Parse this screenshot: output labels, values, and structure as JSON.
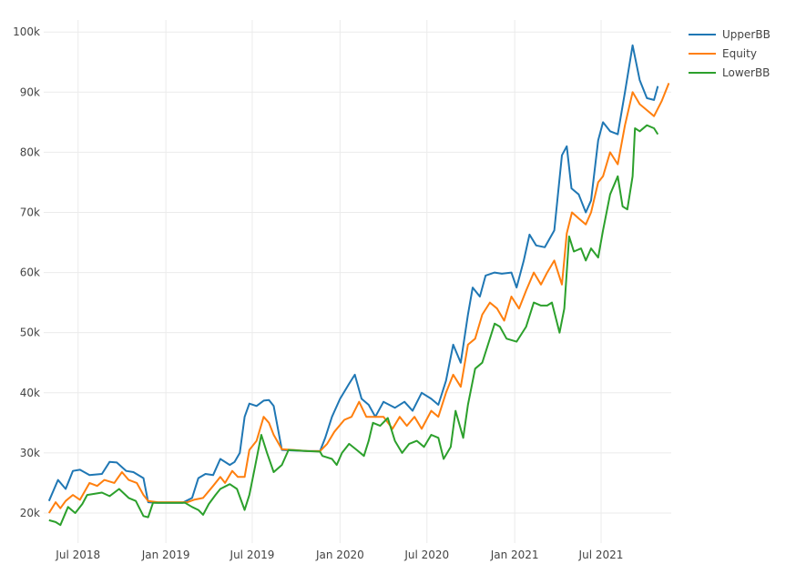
{
  "chart_data": {
    "type": "line",
    "title": "",
    "xlabel": "",
    "ylabel": "",
    "x_axis": {
      "kind": "date",
      "range": [
        "2018-04-20",
        "2021-11-25"
      ],
      "ticks": [
        {
          "date": "2018-07-01",
          "label": "Jul 2018"
        },
        {
          "date": "2019-01-01",
          "label": "Jan 2019"
        },
        {
          "date": "2019-07-01",
          "label": "Jul 2019"
        },
        {
          "date": "2020-01-01",
          "label": "Jan 2020"
        },
        {
          "date": "2020-07-01",
          "label": "Jul 2020"
        },
        {
          "date": "2021-01-01",
          "label": "Jan 2021"
        },
        {
          "date": "2021-07-01",
          "label": "Jul 2021"
        }
      ]
    },
    "y_axis": {
      "range": [
        15000,
        102000
      ],
      "ticks": [
        {
          "value": 20000,
          "label": "20k"
        },
        {
          "value": 30000,
          "label": "30k"
        },
        {
          "value": 40000,
          "label": "40k"
        },
        {
          "value": 50000,
          "label": "50k"
        },
        {
          "value": 60000,
          "label": "60k"
        },
        {
          "value": 70000,
          "label": "70k"
        },
        {
          "value": 80000,
          "label": "80k"
        },
        {
          "value": 90000,
          "label": "90k"
        },
        {
          "value": 100000,
          "label": "100k"
        }
      ]
    },
    "grid": true,
    "legend_position": "top-right",
    "series": [
      {
        "name": "UpperBB",
        "color": "#1f77b4",
        "points": [
          [
            "2018-05-01",
            22000
          ],
          [
            "2018-05-20",
            25500
          ],
          [
            "2018-06-05",
            24000
          ],
          [
            "2018-06-20",
            27000
          ],
          [
            "2018-07-05",
            27200
          ],
          [
            "2018-07-25",
            26300
          ],
          [
            "2018-08-20",
            26500
          ],
          [
            "2018-09-05",
            28500
          ],
          [
            "2018-09-20",
            28400
          ],
          [
            "2018-10-10",
            27000
          ],
          [
            "2018-10-25",
            26800
          ],
          [
            "2018-11-15",
            25800
          ],
          [
            "2018-11-25",
            21800
          ],
          [
            "2018-12-15",
            21700
          ],
          [
            "2019-01-20",
            21700
          ],
          [
            "2019-02-05",
            21700
          ],
          [
            "2019-02-25",
            22500
          ],
          [
            "2019-03-10",
            25800
          ],
          [
            "2019-03-25",
            26500
          ],
          [
            "2019-04-10",
            26300
          ],
          [
            "2019-04-25",
            29000
          ],
          [
            "2019-05-15",
            28000
          ],
          [
            "2019-05-25",
            28500
          ],
          [
            "2019-06-05",
            30000
          ],
          [
            "2019-06-15",
            36000
          ],
          [
            "2019-06-25",
            38200
          ],
          [
            "2019-07-10",
            37800
          ],
          [
            "2019-07-25",
            38700
          ],
          [
            "2019-08-05",
            38800
          ],
          [
            "2019-08-15",
            37800
          ],
          [
            "2019-09-01",
            30500
          ],
          [
            "2019-09-25",
            30400
          ],
          [
            "2019-10-25",
            30300
          ],
          [
            "2019-11-20",
            30300
          ],
          [
            "2019-12-01",
            32500
          ],
          [
            "2019-12-15",
            36000
          ],
          [
            "2020-01-01",
            39000
          ],
          [
            "2020-01-20",
            41500
          ],
          [
            "2020-02-01",
            43000
          ],
          [
            "2020-02-15",
            39000
          ],
          [
            "2020-03-01",
            38000
          ],
          [
            "2020-03-15",
            36000
          ],
          [
            "2020-04-01",
            38500
          ],
          [
            "2020-04-25",
            37500
          ],
          [
            "2020-05-15",
            38500
          ],
          [
            "2020-06-01",
            37000
          ],
          [
            "2020-06-20",
            40000
          ],
          [
            "2020-07-10",
            39000
          ],
          [
            "2020-07-25",
            38000
          ],
          [
            "2020-08-10",
            42000
          ],
          [
            "2020-08-25",
            48000
          ],
          [
            "2020-09-10",
            45000
          ],
          [
            "2020-09-25",
            53000
          ],
          [
            "2020-10-05",
            57500
          ],
          [
            "2020-10-20",
            56000
          ],
          [
            "2020-11-01",
            59500
          ],
          [
            "2020-11-20",
            60000
          ],
          [
            "2020-12-05",
            59800
          ],
          [
            "2020-12-25",
            60000
          ],
          [
            "2021-01-05",
            57500
          ],
          [
            "2021-01-20",
            62000
          ],
          [
            "2021-02-01",
            66300
          ],
          [
            "2021-02-15",
            64500
          ],
          [
            "2021-03-05",
            64200
          ],
          [
            "2021-03-25",
            67000
          ],
          [
            "2021-04-10",
            79500
          ],
          [
            "2021-04-20",
            81000
          ],
          [
            "2021-04-30",
            74000
          ],
          [
            "2021-05-15",
            73000
          ],
          [
            "2021-05-30",
            70000
          ],
          [
            "2021-06-10",
            72000
          ],
          [
            "2021-06-25",
            82000
          ],
          [
            "2021-07-05",
            85000
          ],
          [
            "2021-07-20",
            83500
          ],
          [
            "2021-08-05",
            83000
          ],
          [
            "2021-08-20",
            90000
          ],
          [
            "2021-09-05",
            97800
          ],
          [
            "2021-09-20",
            92000
          ],
          [
            "2021-10-05",
            89000
          ],
          [
            "2021-10-20",
            88700
          ],
          [
            "2021-10-28",
            91000
          ]
        ]
      },
      {
        "name": "Equity",
        "color": "#ff7f0e",
        "points": [
          [
            "2018-05-01",
            20000
          ],
          [
            "2018-05-15",
            21800
          ],
          [
            "2018-05-25",
            20800
          ],
          [
            "2018-06-05",
            22000
          ],
          [
            "2018-06-20",
            23000
          ],
          [
            "2018-07-05",
            22200
          ],
          [
            "2018-07-25",
            25000
          ],
          [
            "2018-08-10",
            24500
          ],
          [
            "2018-08-25",
            25500
          ],
          [
            "2018-09-15",
            25000
          ],
          [
            "2018-10-01",
            26800
          ],
          [
            "2018-10-15",
            25500
          ],
          [
            "2018-11-01",
            25000
          ],
          [
            "2018-11-15",
            23000
          ],
          [
            "2018-11-25",
            22000
          ],
          [
            "2018-12-15",
            21800
          ],
          [
            "2019-01-20",
            21800
          ],
          [
            "2019-02-15",
            21800
          ],
          [
            "2019-03-01",
            22200
          ],
          [
            "2019-03-20",
            22500
          ],
          [
            "2019-04-10",
            24500
          ],
          [
            "2019-04-25",
            26000
          ],
          [
            "2019-05-05",
            25000
          ],
          [
            "2019-05-20",
            27000
          ],
          [
            "2019-06-01",
            26000
          ],
          [
            "2019-06-15",
            26000
          ],
          [
            "2019-06-25",
            30500
          ],
          [
            "2019-07-10",
            32000
          ],
          [
            "2019-07-25",
            36000
          ],
          [
            "2019-08-05",
            35000
          ],
          [
            "2019-08-15",
            33000
          ],
          [
            "2019-09-01",
            30600
          ],
          [
            "2019-09-25",
            30500
          ],
          [
            "2019-10-25",
            30300
          ],
          [
            "2019-11-20",
            30300
          ],
          [
            "2019-12-05",
            31500
          ],
          [
            "2019-12-20",
            33500
          ],
          [
            "2020-01-10",
            35500
          ],
          [
            "2020-01-25",
            36000
          ],
          [
            "2020-02-10",
            38500
          ],
          [
            "2020-02-25",
            36000
          ],
          [
            "2020-03-10",
            36000
          ],
          [
            "2020-04-01",
            36000
          ],
          [
            "2020-04-20",
            34000
          ],
          [
            "2020-05-05",
            36000
          ],
          [
            "2020-05-20",
            34500
          ],
          [
            "2020-06-05",
            36000
          ],
          [
            "2020-06-20",
            34000
          ],
          [
            "2020-07-10",
            37000
          ],
          [
            "2020-07-25",
            36000
          ],
          [
            "2020-08-10",
            40000
          ],
          [
            "2020-08-25",
            43000
          ],
          [
            "2020-09-10",
            41000
          ],
          [
            "2020-09-25",
            48000
          ],
          [
            "2020-10-10",
            49000
          ],
          [
            "2020-10-25",
            53000
          ],
          [
            "2020-11-10",
            55000
          ],
          [
            "2020-11-25",
            54000
          ],
          [
            "2020-12-10",
            52000
          ],
          [
            "2020-12-25",
            56000
          ],
          [
            "2021-01-10",
            54000
          ],
          [
            "2021-01-25",
            57000
          ],
          [
            "2021-02-10",
            60000
          ],
          [
            "2021-02-25",
            58000
          ],
          [
            "2021-03-10",
            60000
          ],
          [
            "2021-03-25",
            62000
          ],
          [
            "2021-04-10",
            58000
          ],
          [
            "2021-04-20",
            66500
          ],
          [
            "2021-05-01",
            70000
          ],
          [
            "2021-05-15",
            69000
          ],
          [
            "2021-05-30",
            68000
          ],
          [
            "2021-06-10",
            70000
          ],
          [
            "2021-06-25",
            75000
          ],
          [
            "2021-07-05",
            76000
          ],
          [
            "2021-07-20",
            80000
          ],
          [
            "2021-08-05",
            78000
          ],
          [
            "2021-08-20",
            84500
          ],
          [
            "2021-09-05",
            90000
          ],
          [
            "2021-09-20",
            88000
          ],
          [
            "2021-10-05",
            87000
          ],
          [
            "2021-10-20",
            86000
          ],
          [
            "2021-11-05",
            88500
          ],
          [
            "2021-11-20",
            91500
          ]
        ]
      },
      {
        "name": "LowerBB",
        "color": "#2ca02c",
        "points": [
          [
            "2018-05-01",
            18800
          ],
          [
            "2018-05-15",
            18500
          ],
          [
            "2018-05-25",
            18000
          ],
          [
            "2018-06-10",
            21000
          ],
          [
            "2018-06-25",
            20000
          ],
          [
            "2018-07-10",
            21500
          ],
          [
            "2018-07-20",
            23000
          ],
          [
            "2018-08-20",
            23400
          ],
          [
            "2018-09-05",
            22800
          ],
          [
            "2018-09-25",
            24000
          ],
          [
            "2018-10-15",
            22500
          ],
          [
            "2018-10-30",
            22000
          ],
          [
            "2018-11-15",
            19500
          ],
          [
            "2018-11-25",
            19300
          ],
          [
            "2018-12-05",
            21700
          ],
          [
            "2019-01-20",
            21700
          ],
          [
            "2019-02-10",
            21700
          ],
          [
            "2019-02-25",
            21000
          ],
          [
            "2019-03-10",
            20500
          ],
          [
            "2019-03-20",
            19700
          ],
          [
            "2019-04-01",
            21500
          ],
          [
            "2019-04-15",
            23000
          ],
          [
            "2019-04-25",
            24000
          ],
          [
            "2019-05-15",
            24800
          ],
          [
            "2019-05-30",
            24000
          ],
          [
            "2019-06-15",
            20500
          ],
          [
            "2019-06-25",
            23000
          ],
          [
            "2019-07-05",
            27000
          ],
          [
            "2019-07-20",
            33000
          ],
          [
            "2019-08-01",
            30000
          ],
          [
            "2019-08-15",
            26800
          ],
          [
            "2019-09-01",
            28000
          ],
          [
            "2019-09-15",
            30500
          ],
          [
            "2019-10-25",
            30300
          ],
          [
            "2019-11-20",
            30200
          ],
          [
            "2019-11-25",
            29500
          ],
          [
            "2019-12-15",
            29000
          ],
          [
            "2019-12-25",
            28000
          ],
          [
            "2020-01-05",
            30000
          ],
          [
            "2020-01-20",
            31500
          ],
          [
            "2020-02-05",
            30500
          ],
          [
            "2020-02-20",
            29500
          ],
          [
            "2020-03-01",
            32000
          ],
          [
            "2020-03-10",
            35000
          ],
          [
            "2020-03-25",
            34500
          ],
          [
            "2020-04-10",
            35800
          ],
          [
            "2020-04-25",
            32000
          ],
          [
            "2020-05-10",
            30000
          ],
          [
            "2020-05-25",
            31500
          ],
          [
            "2020-06-10",
            32000
          ],
          [
            "2020-06-25",
            31000
          ],
          [
            "2020-07-10",
            33000
          ],
          [
            "2020-07-25",
            32500
          ],
          [
            "2020-08-05",
            29000
          ],
          [
            "2020-08-20",
            31000
          ],
          [
            "2020-08-30",
            37000
          ],
          [
            "2020-09-15",
            32500
          ],
          [
            "2020-09-25",
            38000
          ],
          [
            "2020-10-10",
            44000
          ],
          [
            "2020-10-25",
            45000
          ],
          [
            "2020-11-10",
            49000
          ],
          [
            "2020-11-20",
            51500
          ],
          [
            "2020-12-01",
            51000
          ],
          [
            "2020-12-15",
            49000
          ],
          [
            "2021-01-05",
            48500
          ],
          [
            "2021-01-25",
            51000
          ],
          [
            "2021-02-10",
            55000
          ],
          [
            "2021-02-25",
            54500
          ],
          [
            "2021-03-10",
            54500
          ],
          [
            "2021-03-20",
            55000
          ],
          [
            "2021-04-05",
            50000
          ],
          [
            "2021-04-15",
            54000
          ],
          [
            "2021-04-25",
            66000
          ],
          [
            "2021-05-05",
            63500
          ],
          [
            "2021-05-20",
            64000
          ],
          [
            "2021-05-30",
            62000
          ],
          [
            "2021-06-10",
            64000
          ],
          [
            "2021-06-25",
            62500
          ],
          [
            "2021-07-05",
            67000
          ],
          [
            "2021-07-20",
            73000
          ],
          [
            "2021-08-05",
            76000
          ],
          [
            "2021-08-15",
            71000
          ],
          [
            "2021-08-25",
            70500
          ],
          [
            "2021-09-05",
            76000
          ],
          [
            "2021-09-10",
            84000
          ],
          [
            "2021-09-20",
            83500
          ],
          [
            "2021-10-05",
            84500
          ],
          [
            "2021-10-20",
            84000
          ],
          [
            "2021-10-28",
            83000
          ]
        ]
      }
    ]
  }
}
